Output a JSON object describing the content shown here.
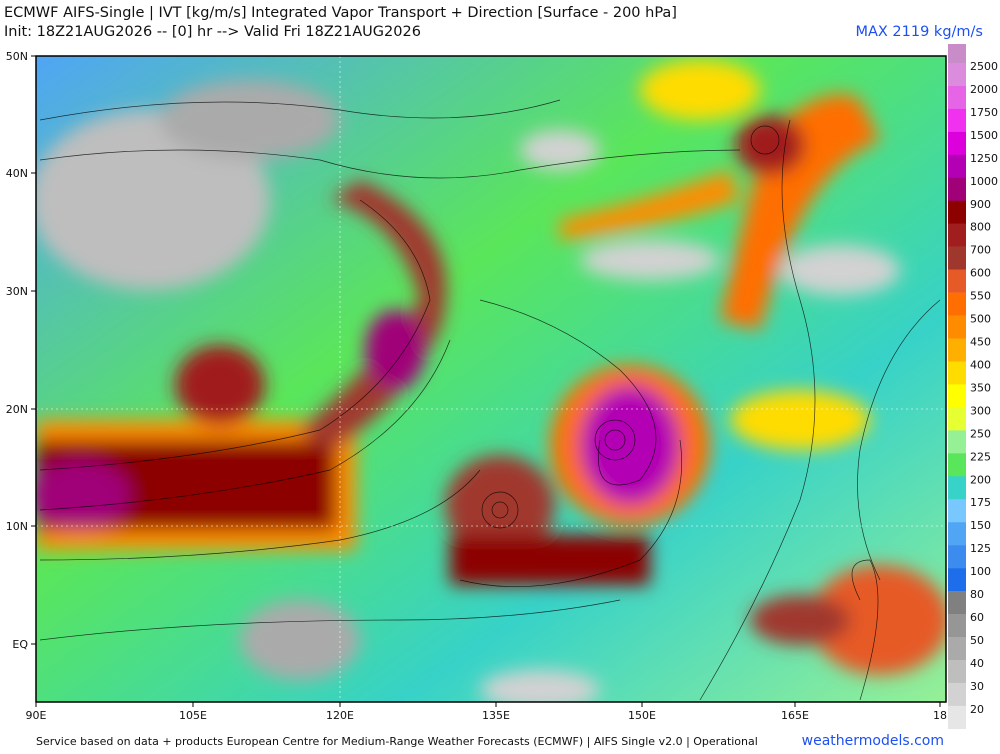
{
  "header": {
    "title": "ECMWF AIFS-Single | IVT [kg/m/s] Integrated Vapor Transport + Direction [Surface - 200 hPa]",
    "init": "Init: 18Z21AUG2026 -- [0] hr --> Valid Fri 18Z21AUG2026",
    "max": "MAX 2119 kg/m/s"
  },
  "lat_labels": [
    "50N",
    "40N",
    "30N",
    "20N",
    "10N",
    "EQ"
  ],
  "lon_labels": [
    "90E",
    "105E",
    "120E",
    "135E",
    "150E",
    "165E",
    "18"
  ],
  "colorbar": [
    {
      "label": 2500,
      "color": "#dc8cdc"
    },
    {
      "label": 2000,
      "color": "#e664e6"
    },
    {
      "label": 1750,
      "color": "#f032f0"
    },
    {
      "label": 1500,
      "color": "#dc00dc"
    },
    {
      "label": 1250,
      "color": "#b400b4"
    },
    {
      "label": 1000,
      "color": "#a00078"
    },
    {
      "label": 900,
      "color": "#8c0000"
    },
    {
      "label": 800,
      "color": "#a01e1e"
    },
    {
      "label": 700,
      "color": "#a0372d"
    },
    {
      "label": 600,
      "color": "#e65a28"
    },
    {
      "label": 550,
      "color": "#ff6e00"
    },
    {
      "label": 500,
      "color": "#ff8c00"
    },
    {
      "label": 450,
      "color": "#ffaf00"
    },
    {
      "label": 400,
      "color": "#ffdc00"
    },
    {
      "label": 350,
      "color": "#ffff00"
    },
    {
      "label": 300,
      "color": "#e6ff32"
    },
    {
      "label": 250,
      "color": "#96f096"
    },
    {
      "label": 225,
      "color": "#5ae65a"
    },
    {
      "label": 200,
      "color": "#37d2c8"
    },
    {
      "label": 175,
      "color": "#78c8ff"
    },
    {
      "label": 150,
      "color": "#50a5f5"
    },
    {
      "label": 125,
      "color": "#3c8cf0"
    },
    {
      "label": 100,
      "color": "#1e6eeb"
    },
    {
      "label": 80,
      "color": "#808080"
    },
    {
      "label": 60,
      "color": "#969696"
    },
    {
      "label": 50,
      "color": "#aaaaaa"
    },
    {
      "label": 40,
      "color": "#bebebe"
    },
    {
      "label": 30,
      "color": "#d2d2d2"
    },
    {
      "label": 20,
      "color": "#e6e6e6"
    }
  ],
  "footer": {
    "credit": "Service based on data + products European Centre for Medium-Range Weather Forecasts (ECMWF) | AIFS Single v2.0 | Operational",
    "brand": "weathermodels.com"
  }
}
